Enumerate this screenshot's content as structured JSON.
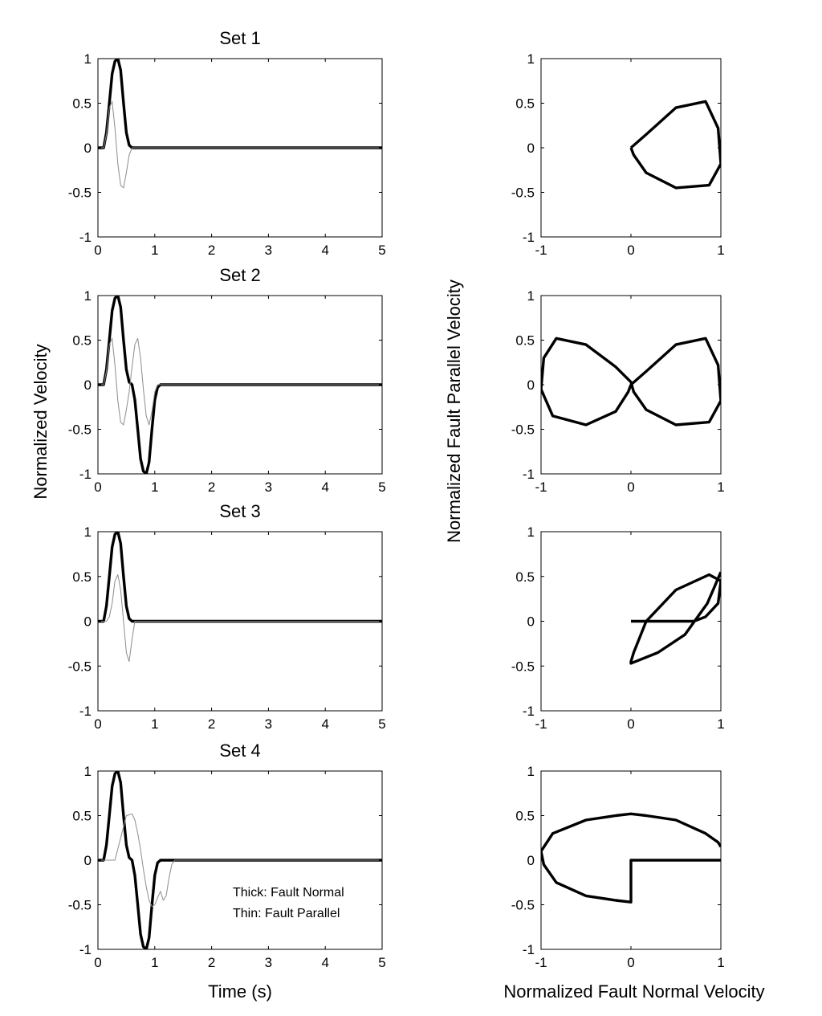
{
  "figure": {
    "time_ylabel": "Normalized Velocity",
    "time_xlabel": "Time (s)",
    "orbit_ylabel": "Normalized Fault Parallel Velocity",
    "orbit_xlabel": "Normalized Fault Normal Velocity",
    "legend": [
      "Thick: Fault Normal",
      "Thin: Fault Parallel"
    ]
  },
  "chart_data": [
    {
      "type": "line",
      "title": "Set 1",
      "xlabel": "",
      "ylabel": "",
      "xlim": [
        0,
        5
      ],
      "ylim": [
        -1,
        1
      ],
      "xticks": [
        0,
        1,
        2,
        3,
        4,
        5
      ],
      "yticks": [
        -1,
        -0.5,
        0,
        0.5,
        1
      ],
      "series": [
        {
          "style": "thick",
          "x": [
            0,
            0.1,
            0.15,
            0.2,
            0.25,
            0.3,
            0.35,
            0.4,
            0.45,
            0.5,
            0.55,
            0.6,
            0.62,
            5
          ],
          "y": [
            0,
            0,
            0.17,
            0.5,
            0.83,
            0.97,
            1.0,
            0.87,
            0.5,
            0.17,
            0.03,
            0,
            0,
            0
          ]
        },
        {
          "style": "thin",
          "x": [
            0,
            0.1,
            0.15,
            0.2,
            0.25,
            0.3,
            0.35,
            0.4,
            0.45,
            0.5,
            0.55,
            0.6,
            0.62,
            5
          ],
          "y": [
            0,
            0,
            0.15,
            0.45,
            0.52,
            0.22,
            -0.18,
            -0.42,
            -0.45,
            -0.28,
            -0.08,
            0,
            0,
            0
          ]
        }
      ]
    },
    {
      "type": "line",
      "title": "",
      "xlabel": "",
      "ylabel": "",
      "xlim": [
        -1,
        1
      ],
      "ylim": [
        -1,
        1
      ],
      "xticks": [
        -1,
        0,
        1
      ],
      "yticks": [
        -1,
        -0.5,
        0,
        0.5,
        1
      ],
      "series": [
        {
          "style": "thick",
          "x": [
            0,
            0.17,
            0.5,
            0.83,
            0.97,
            1.0,
            0.87,
            0.5,
            0.17,
            0.03,
            0
          ],
          "y": [
            0,
            0.15,
            0.45,
            0.52,
            0.22,
            -0.18,
            -0.42,
            -0.45,
            -0.28,
            -0.08,
            0
          ]
        }
      ]
    },
    {
      "type": "line",
      "title": "Set 2",
      "xlabel": "",
      "ylabel": "",
      "xlim": [
        0,
        5
      ],
      "ylim": [
        -1,
        1
      ],
      "xticks": [
        0,
        1,
        2,
        3,
        4,
        5
      ],
      "yticks": [
        -1,
        -0.5,
        0,
        0.5,
        1
      ],
      "series": [
        {
          "style": "thick",
          "x": [
            0,
            0.1,
            0.15,
            0.2,
            0.25,
            0.3,
            0.35,
            0.4,
            0.45,
            0.5,
            0.55,
            0.6,
            0.65,
            0.7,
            0.75,
            0.8,
            0.85,
            0.9,
            0.95,
            1.0,
            1.05,
            1.1,
            1.12,
            5
          ],
          "y": [
            0,
            0,
            0.17,
            0.5,
            0.83,
            0.97,
            1.0,
            0.87,
            0.5,
            0.17,
            0.03,
            0,
            -0.17,
            -0.5,
            -0.83,
            -0.97,
            -1.0,
            -0.87,
            -0.5,
            -0.17,
            -0.03,
            0,
            0,
            0
          ]
        },
        {
          "style": "thin",
          "x": [
            0,
            0.1,
            0.15,
            0.2,
            0.25,
            0.3,
            0.35,
            0.4,
            0.45,
            0.5,
            0.55,
            0.6,
            0.65,
            0.7,
            0.75,
            0.8,
            0.85,
            0.9,
            0.95,
            1.0,
            1.05,
            1.1,
            1.12,
            5
          ],
          "y": [
            0,
            0,
            0.15,
            0.45,
            0.52,
            0.22,
            -0.18,
            -0.42,
            -0.45,
            -0.28,
            -0.08,
            0.2,
            0.45,
            0.52,
            0.3,
            -0.05,
            -0.35,
            -0.45,
            -0.3,
            -0.08,
            0,
            0,
            0,
            0
          ]
        }
      ]
    },
    {
      "type": "line",
      "title": "",
      "xlabel": "",
      "ylabel": "",
      "xlim": [
        -1,
        1
      ],
      "ylim": [
        -1,
        1
      ],
      "xticks": [
        -1,
        0,
        1
      ],
      "yticks": [
        -1,
        -0.5,
        0,
        0.5,
        1
      ],
      "series": [
        {
          "style": "thick",
          "x": [
            0,
            0.17,
            0.5,
            0.83,
            0.97,
            1.0,
            0.87,
            0.5,
            0.17,
            0.03,
            0,
            -0.17,
            -0.5,
            -0.83,
            -0.97,
            -1.0,
            -0.87,
            -0.5,
            -0.17,
            -0.03,
            0
          ],
          "y": [
            0,
            0.15,
            0.45,
            0.52,
            0.22,
            -0.18,
            -0.42,
            -0.45,
            -0.28,
            -0.08,
            0.03,
            0.2,
            0.45,
            0.52,
            0.3,
            -0.05,
            -0.35,
            -0.45,
            -0.3,
            -0.08,
            0
          ]
        }
      ]
    },
    {
      "type": "line",
      "title": "Set 3",
      "xlabel": "",
      "ylabel": "",
      "xlim": [
        0,
        5
      ],
      "ylim": [
        -1,
        1
      ],
      "xticks": [
        0,
        1,
        2,
        3,
        4,
        5
      ],
      "yticks": [
        -1,
        -0.5,
        0,
        0.5,
        1
      ],
      "series": [
        {
          "style": "thick",
          "x": [
            0,
            0.1,
            0.15,
            0.2,
            0.25,
            0.3,
            0.35,
            0.4,
            0.45,
            0.5,
            0.55,
            0.6,
            0.62,
            5
          ],
          "y": [
            0,
            0,
            0.17,
            0.5,
            0.83,
            0.97,
            1.0,
            0.87,
            0.5,
            0.17,
            0.03,
            0,
            0,
            0
          ]
        },
        {
          "style": "thin",
          "x": [
            0,
            0.1,
            0.15,
            0.2,
            0.25,
            0.3,
            0.35,
            0.4,
            0.45,
            0.5,
            0.55,
            0.6,
            0.65,
            5
          ],
          "y": [
            0,
            0,
            0,
            0.05,
            0.2,
            0.45,
            0.52,
            0.35,
            0.0,
            -0.35,
            -0.45,
            -0.2,
            0,
            0
          ]
        }
      ]
    },
    {
      "type": "line",
      "title": "",
      "xlabel": "",
      "ylabel": "",
      "xlim": [
        -1,
        1
      ],
      "ylim": [
        -1,
        1
      ],
      "xticks": [
        -1,
        0,
        1
      ],
      "yticks": [
        -1,
        -0.5,
        0,
        0.5,
        1
      ],
      "series": [
        {
          "style": "thick",
          "x": [
            0,
            0.7,
            0.83,
            0.97,
            1.0,
            0.87,
            0.5,
            0.17,
            0.03,
            0,
            0,
            0.3,
            0.6,
            0.85,
            1.0
          ],
          "y": [
            0,
            0,
            0.05,
            0.2,
            0.45,
            0.52,
            0.35,
            0.0,
            -0.35,
            -0.45,
            -0.47,
            -0.35,
            -0.15,
            0.2,
            0.55
          ]
        }
      ]
    },
    {
      "type": "line",
      "title": "Set 4",
      "xlabel": "Time (s)",
      "ylabel": "",
      "xlim": [
        0,
        5
      ],
      "ylim": [
        -1,
        1
      ],
      "xticks": [
        0,
        1,
        2,
        3,
        4,
        5
      ],
      "yticks": [
        -1,
        -0.5,
        0,
        0.5,
        1
      ],
      "series": [
        {
          "style": "thick",
          "x": [
            0,
            0.1,
            0.15,
            0.2,
            0.25,
            0.3,
            0.35,
            0.4,
            0.45,
            0.5,
            0.55,
            0.6,
            0.65,
            0.7,
            0.75,
            0.8,
            0.85,
            0.9,
            0.95,
            1.0,
            1.05,
            1.1,
            1.12,
            5
          ],
          "y": [
            0,
            0,
            0.17,
            0.5,
            0.83,
            0.97,
            1.0,
            0.87,
            0.5,
            0.17,
            0.03,
            0,
            -0.17,
            -0.5,
            -0.83,
            -0.97,
            -1.0,
            -0.87,
            -0.5,
            -0.17,
            -0.03,
            0,
            0,
            0
          ]
        },
        {
          "style": "thin",
          "x": [
            0,
            0.3,
            0.4,
            0.5,
            0.6,
            0.65,
            0.7,
            0.75,
            0.8,
            0.85,
            0.9,
            0.95,
            1.0,
            1.05,
            1.1,
            1.15,
            1.2,
            1.25,
            1.3,
            1.35,
            5
          ],
          "y": [
            0,
            0,
            0.25,
            0.5,
            0.52,
            0.45,
            0.3,
            0.12,
            -0.1,
            -0.3,
            -0.45,
            -0.52,
            -0.5,
            -0.42,
            -0.35,
            -0.45,
            -0.4,
            -0.2,
            -0.05,
            0,
            0
          ]
        }
      ]
    },
    {
      "type": "line",
      "title": "",
      "xlabel": "Normalized Fault Normal Velocity",
      "ylabel": "",
      "xlim": [
        -1,
        1
      ],
      "ylim": [
        -1,
        1
      ],
      "xticks": [
        -1,
        0,
        1
      ],
      "yticks": [
        -1,
        -0.5,
        0,
        0.5,
        1
      ],
      "series": [
        {
          "style": "thick",
          "x": [
            1.0,
            0,
            0,
            -0.17,
            -0.5,
            -0.83,
            -0.97,
            -1.0,
            -0.87,
            -0.5,
            -0.17,
            0,
            0.17,
            0.5,
            0.83,
            0.97,
            1.0
          ],
          "y": [
            0,
            0,
            -0.47,
            -0.45,
            -0.4,
            -0.25,
            -0.05,
            0.1,
            0.3,
            0.45,
            0.5,
            0.52,
            0.5,
            0.45,
            0.3,
            0.2,
            0.15
          ]
        }
      ]
    }
  ]
}
